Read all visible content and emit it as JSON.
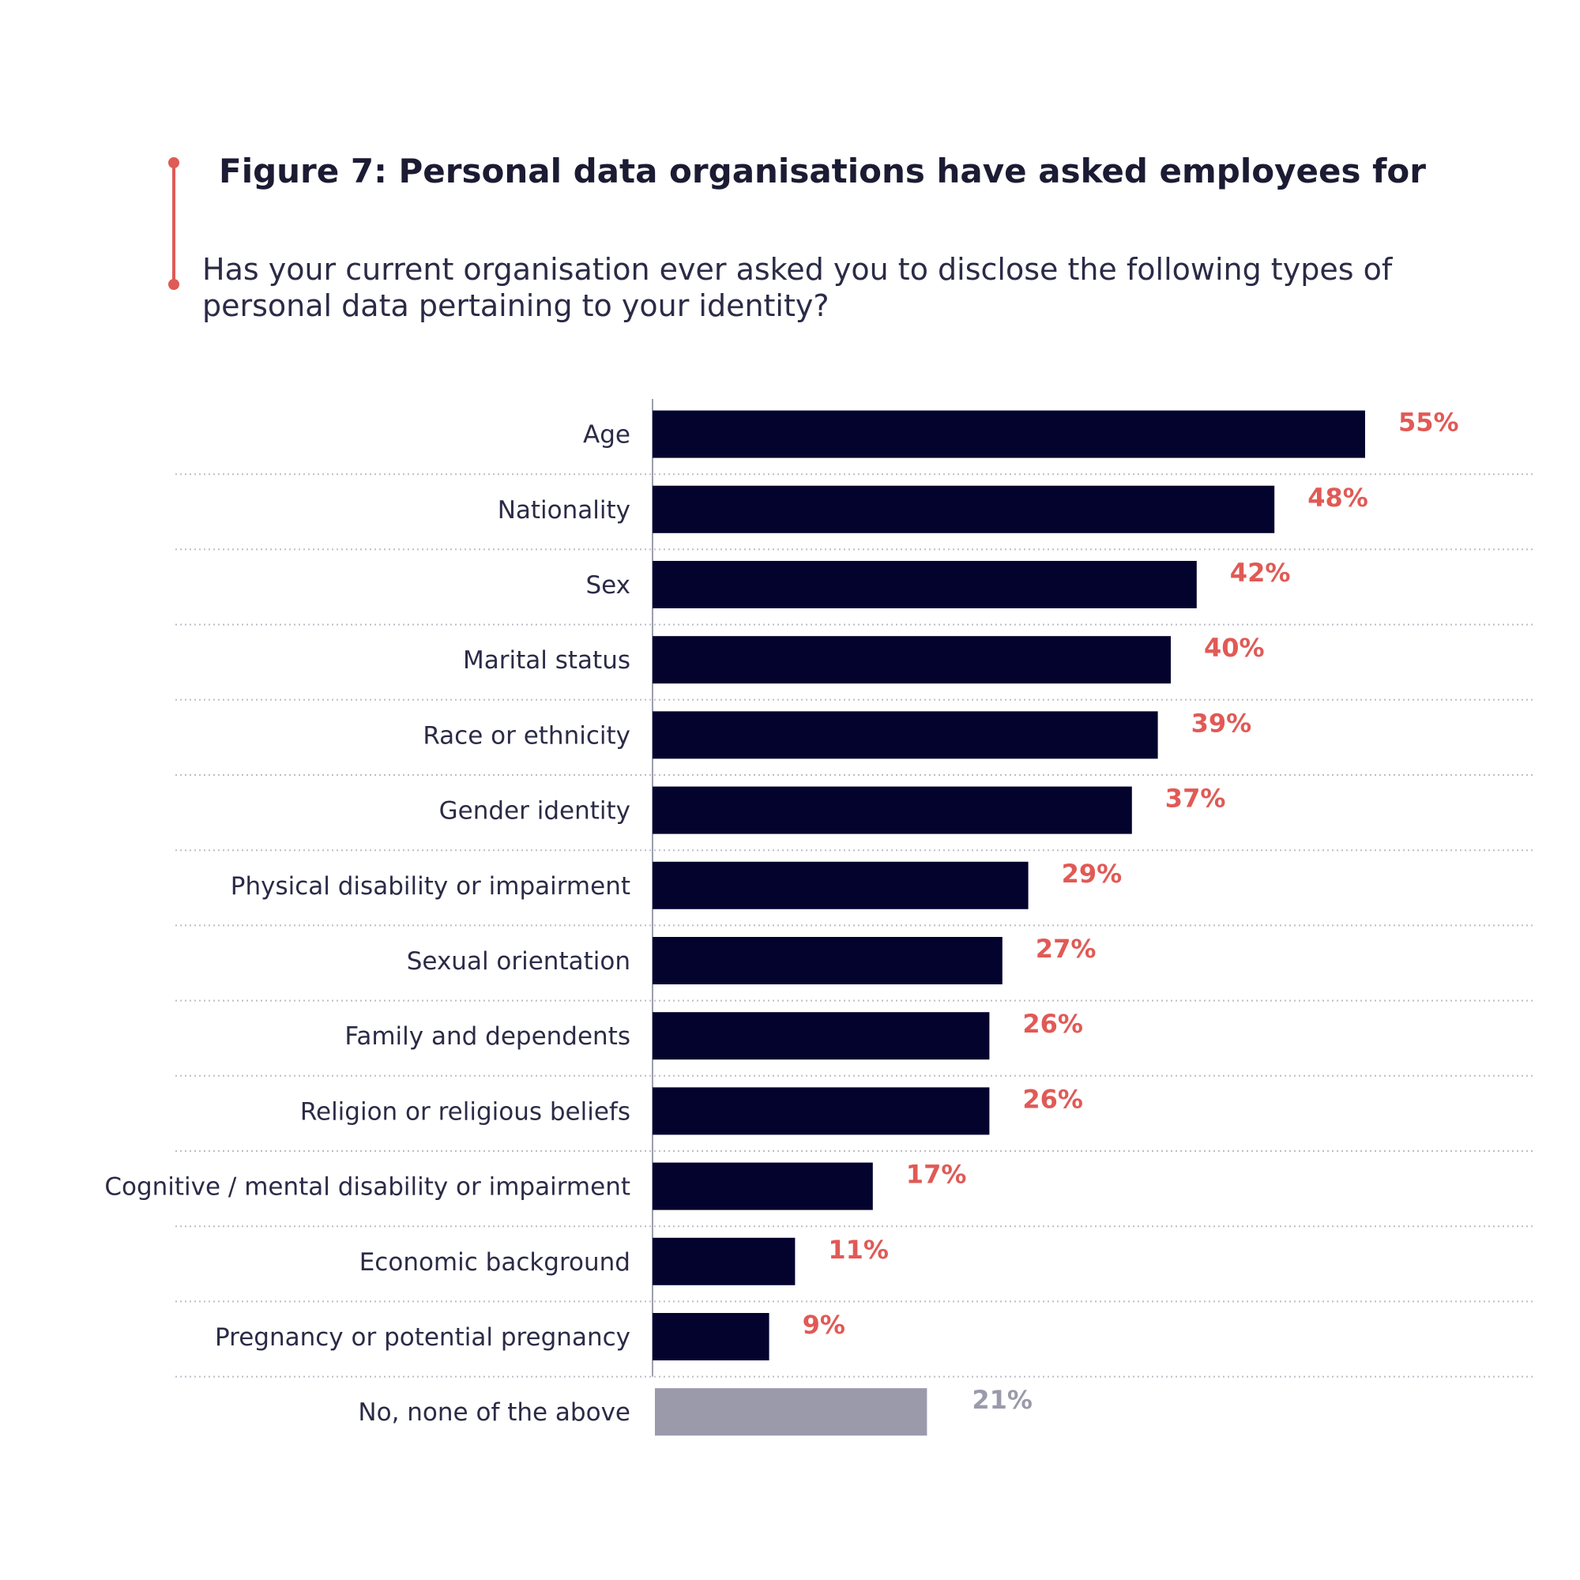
{
  "header": {
    "title": "Figure 7: Personal data organisations have asked employees for",
    "subtitle": "Has your current organisation ever asked you to disclose the following types of personal data pertaining to your identity?"
  },
  "colors": {
    "accent": "#e05a56",
    "bar": "#03032e",
    "bar_none": "#9b9aab",
    "value_label": "#e05a56",
    "value_label_none": "#9b9aab",
    "text": "#2b2b47",
    "gridline": "#bdbdc8",
    "axis": "#9e9eb0"
  },
  "chart_data": {
    "type": "bar",
    "orientation": "horizontal",
    "title": "Figure 7: Personal data organisations have asked employees for",
    "subtitle": "Has your current organisation ever asked you to disclose the following types of personal data pertaining to your identity?",
    "categories": [
      "Age",
      "Nationality",
      "Sex",
      "Marital status",
      "Race or ethnicity",
      "Gender identity",
      "Physical disability or impairment",
      "Sexual orientation",
      "Family and dependents",
      "Religion or religious beliefs",
      "Cognitive / mental disability or impairment",
      "Economic background",
      "Pregnancy or potential pregnancy",
      "No, none of the above"
    ],
    "values": [
      55,
      48,
      42,
      40,
      39,
      37,
      29,
      27,
      26,
      26,
      17,
      11,
      9,
      21
    ],
    "value_labels": [
      "55%",
      "48%",
      "42%",
      "40%",
      "39%",
      "37%",
      "29%",
      "27%",
      "26%",
      "26%",
      "17%",
      "11%",
      "9%",
      "21%"
    ],
    "highlight": [
      false,
      false,
      false,
      false,
      false,
      false,
      false,
      false,
      false,
      false,
      false,
      false,
      false,
      true
    ],
    "xlim": [
      0,
      55
    ],
    "unit": "%",
    "grid": "dotted horizontal separators",
    "legend": "none"
  }
}
